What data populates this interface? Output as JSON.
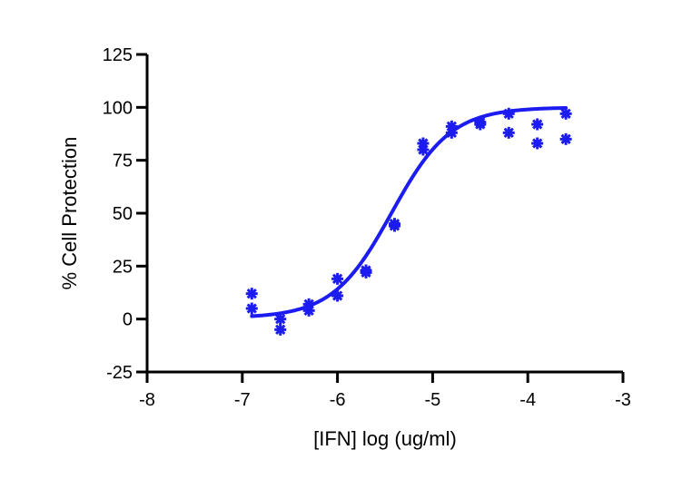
{
  "chart_data": {
    "type": "scatter",
    "title": "",
    "xlabel": "[IFN] log (ug/ml)",
    "ylabel": "% Cell Protection",
    "xlim": [
      -8,
      -3
    ],
    "ylim": [
      -25,
      125
    ],
    "xticks": [
      -8,
      -7,
      -6,
      -5,
      -4,
      -3
    ],
    "yticks": [
      -25,
      0,
      25,
      50,
      75,
      100,
      125
    ],
    "x_tick_labels": [
      "-8",
      "-7",
      "-6",
      "-5",
      "-4",
      "-3"
    ],
    "y_tick_labels": [
      "-25",
      "0",
      "25",
      "50",
      "75",
      "100",
      "125"
    ],
    "grid": false,
    "legend": "none",
    "color": "#1c1cf0",
    "series": [
      {
        "kind": "points",
        "x": [
          -6.9,
          -6.9,
          -6.6,
          -6.6,
          -6.3,
          -6.3,
          -6.0,
          -6.0,
          -5.7,
          -5.7,
          -5.4,
          -5.4,
          -5.1,
          -5.1,
          -4.8,
          -4.8,
          -4.5,
          -4.5,
          -4.2,
          -4.2,
          -3.9,
          -3.9,
          -3.6,
          -3.6
        ],
        "y": [
          12,
          5,
          0,
          -5,
          7,
          4,
          19,
          11,
          23,
          22,
          45,
          44,
          83,
          80,
          91,
          88,
          93,
          92,
          97,
          88,
          92,
          83,
          97,
          85
        ]
      },
      {
        "kind": "curve",
        "model": "sigmoidal dose-response",
        "bottom": 0.5,
        "top": 100,
        "logEC50": -5.43,
        "hill": 1.4,
        "x_range": [
          -6.9,
          -3.6
        ]
      }
    ]
  }
}
